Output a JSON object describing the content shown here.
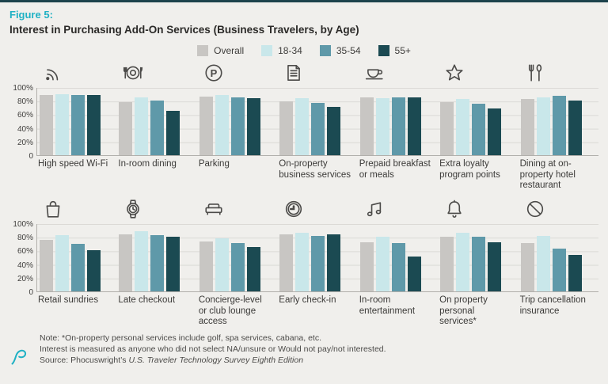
{
  "header": {
    "figure_label": "Figure 5:",
    "title": "Interest in Purchasing Add-On Services (Business Travelers, by Age)"
  },
  "colors": {
    "accent_teal": "#1fb1c4",
    "background": "#f0efec",
    "gridline": "#dbd9d5",
    "axis_line": "#b1afab",
    "series_overall": "#c8c6c3",
    "series_18_34": "#c9e7ea",
    "series_35_54": "#5f99a9",
    "series_55_plus": "#1b4a52"
  },
  "chart_data": {
    "type": "bar",
    "unit": "percent",
    "title": "Interest in Purchasing Add-On Services (Business Travelers, by Age)",
    "legend_position": "top-center",
    "grid": true,
    "ylim": [
      0,
      100
    ],
    "yticks": [
      "100%",
      "80%",
      "60%",
      "40%",
      "20%",
      "0"
    ],
    "series_names": [
      "Overall",
      "18-34",
      "35-54",
      "55+"
    ],
    "series_colors": [
      "#c8c6c3",
      "#c9e7ea",
      "#5f99a9",
      "#1b4a52"
    ],
    "rows": [
      {
        "charts": [
          {
            "label": "High speed Wi-Fi",
            "icon": "wifi-icon",
            "values": [
              90,
              91,
              89,
              89
            ]
          },
          {
            "label": "In-room dining",
            "icon": "room-service-icon",
            "values": [
              79,
              86,
              81,
              66
            ]
          },
          {
            "label": "Parking",
            "icon": "parking-icon",
            "values": [
              87,
              90,
              86,
              85
            ]
          },
          {
            "label": "On-property business services",
            "icon": "document-icon",
            "values": [
              80,
              85,
              78,
              72
            ]
          },
          {
            "label": "Prepaid breakfast or meals",
            "icon": "coffee-cup-icon",
            "values": [
              86,
              85,
              86,
              86
            ]
          },
          {
            "label": "Extra loyalty program points",
            "icon": "star-icon",
            "values": [
              79,
              84,
              77,
              70
            ]
          },
          {
            "label": "Dining at on-property hotel restaurant",
            "icon": "utensils-icon",
            "values": [
              83,
              86,
              88,
              81
            ]
          }
        ]
      },
      {
        "charts": [
          {
            "label": "Retail sundries",
            "icon": "shopping-bag-icon",
            "values": [
              76,
              83,
              71,
              61
            ]
          },
          {
            "label": "Late checkout",
            "icon": "watch-icon",
            "values": [
              85,
              89,
              84,
              81
            ]
          },
          {
            "label": "Concierge-level or club lounge access",
            "icon": "bed-icon",
            "values": [
              74,
              79,
              72,
              66
            ]
          },
          {
            "label": "Early check-in",
            "icon": "clock-icon",
            "values": [
              85,
              87,
              82,
              85
            ]
          },
          {
            "label": "In-room entertainment",
            "icon": "music-note-icon",
            "values": [
              73,
              81,
              72,
              52
            ]
          },
          {
            "label": "On property personal services*",
            "icon": "bell-icon",
            "values": [
              81,
              87,
              81,
              73
            ]
          },
          {
            "label": "Trip cancellation insurance",
            "icon": "no-entry-icon",
            "values": [
              72,
              82,
              63,
              54
            ]
          }
        ]
      }
    ]
  },
  "footer": {
    "note": "Note: *On-property personal services include golf, spa services, cabana, etc.",
    "interest_note": "Interest is measured as anyone who did not select NA/unsure or Would not pay/not interested.",
    "source_prefix": "Source: Phocuswright’s ",
    "source_title": "U.S. Traveler Technology Survey Eighth Edition"
  }
}
